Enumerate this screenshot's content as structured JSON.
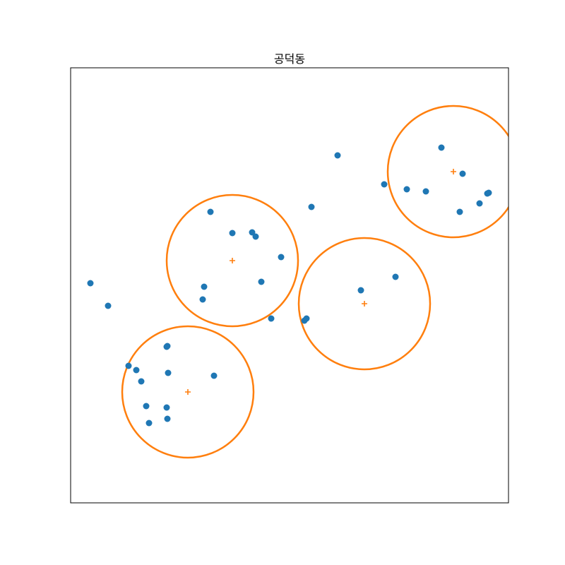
{
  "chart_data": {
    "type": "scatter",
    "title": "공덕동",
    "xlabel": "",
    "ylabel": "",
    "axes_ticks": false,
    "grid": false,
    "legend": false,
    "xlim": [
      0,
      620
    ],
    "ylim": [
      0,
      616
    ],
    "colors": {
      "points": "#1f77b4",
      "circles": "#ff7f0e",
      "frame": "#000000"
    },
    "series": [
      {
        "marker": "circle",
        "points": [
          [
            28,
            311
          ],
          [
            53,
            279
          ],
          [
            198,
            412
          ],
          [
            229,
            382
          ],
          [
            257,
            383
          ],
          [
            262,
            377
          ],
          [
            298,
            348
          ],
          [
            270,
            313
          ],
          [
            189,
            306
          ],
          [
            187,
            288
          ],
          [
            284,
            261
          ],
          [
            341,
            419
          ],
          [
            378,
            492
          ],
          [
            444,
            451
          ],
          [
            476,
            444
          ],
          [
            503,
            441
          ],
          [
            525,
            503
          ],
          [
            555,
            466
          ],
          [
            551,
            412
          ],
          [
            579,
            424
          ],
          [
            590,
            438
          ],
          [
            592,
            439
          ],
          [
            411,
            301
          ],
          [
            460,
            320
          ],
          [
            334,
            261
          ],
          [
            331,
            258
          ],
          [
            136,
            221
          ],
          [
            137,
            222
          ],
          [
            82,
            194
          ],
          [
            93,
            188
          ],
          [
            100,
            172
          ],
          [
            138,
            184
          ],
          [
            203,
            180
          ],
          [
            107,
            137
          ],
          [
            136,
            135
          ],
          [
            111,
            113
          ],
          [
            137,
            119
          ]
        ]
      }
    ],
    "clusters": [
      {
        "center": [
          229,
          343
        ],
        "radius": 93
      },
      {
        "center": [
          416,
          282
        ],
        "radius": 93
      },
      {
        "center": [
          542,
          469
        ],
        "radius": 93
      },
      {
        "center": [
          166,
          157
        ],
        "radius": 93
      }
    ]
  }
}
